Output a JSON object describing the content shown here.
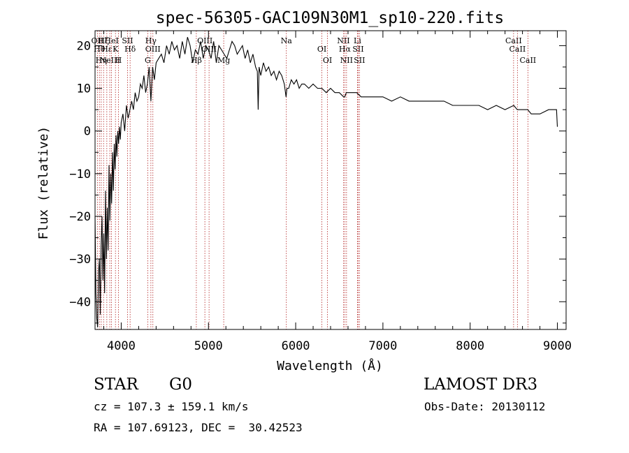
{
  "chart_data": {
    "type": "line",
    "title": "spec-56305-GAC109N30M1_sp10-220.fits",
    "xlabel": "Wavelength (Å)",
    "ylabel": "Flux (relative)",
    "xlim": [
      3700,
      9100
    ],
    "ylim": [
      -46.5,
      23.5
    ],
    "xticks": [
      4000,
      5000,
      6000,
      7000,
      8000,
      9000
    ],
    "yticks": [
      -40,
      -30,
      -20,
      -10,
      0,
      10,
      20
    ],
    "series": [
      {
        "name": "flux",
        "x": [
          3700,
          3710,
          3720,
          3730,
          3740,
          3750,
          3760,
          3770,
          3780,
          3790,
          3800,
          3810,
          3820,
          3830,
          3840,
          3850,
          3860,
          3870,
          3880,
          3890,
          3900,
          3910,
          3920,
          3930,
          3940,
          3950,
          3960,
          3970,
          3980,
          3990,
          4000,
          4020,
          4040,
          4060,
          4080,
          4100,
          4120,
          4140,
          4160,
          4180,
          4200,
          4220,
          4240,
          4260,
          4280,
          4300,
          4320,
          4340,
          4360,
          4380,
          4400,
          4430,
          4460,
          4490,
          4520,
          4550,
          4580,
          4610,
          4640,
          4670,
          4700,
          4730,
          4760,
          4790,
          4820,
          4850,
          4880,
          4910,
          4940,
          4970,
          5000,
          5030,
          5060,
          5090,
          5120,
          5150,
          5180,
          5210,
          5240,
          5270,
          5300,
          5330,
          5360,
          5390,
          5420,
          5450,
          5480,
          5510,
          5540,
          5560,
          5570,
          5580,
          5600,
          5630,
          5660,
          5690,
          5720,
          5750,
          5780,
          5810,
          5840,
          5870,
          5890,
          5900,
          5920,
          5950,
          5980,
          6010,
          6040,
          6070,
          6100,
          6150,
          6200,
          6250,
          6300,
          6350,
          6400,
          6450,
          6500,
          6550,
          6563,
          6580,
          6600,
          6650,
          6700,
          6750,
          6800,
          6900,
          7000,
          7100,
          7200,
          7300,
          7400,
          7500,
          7600,
          7700,
          7800,
          7900,
          8000,
          8100,
          8200,
          8300,
          8400,
          8500,
          8540,
          8600,
          8660,
          8700,
          8800,
          8900,
          8960,
          8990,
          9000
        ],
        "y": [
          -20,
          -38,
          -44,
          -46,
          -33,
          -30,
          -43,
          -27,
          -20,
          -35,
          -24,
          -38,
          -14,
          -30,
          -18,
          -28,
          -8,
          -21,
          -10,
          -17,
          -5,
          -14,
          -3,
          -9,
          -1,
          -6,
          0,
          -3,
          1,
          -2,
          2,
          4,
          0,
          6,
          3,
          5,
          7,
          5,
          9,
          7,
          8,
          11,
          10,
          13,
          9,
          11,
          15,
          7,
          15,
          12,
          16,
          17,
          18,
          16,
          20,
          18,
          21,
          19,
          20,
          17,
          21,
          18,
          22,
          20,
          16,
          19,
          18,
          21,
          17,
          20,
          19,
          17,
          21,
          16,
          20,
          19,
          18,
          17,
          19,
          21,
          20,
          18,
          19,
          20,
          17,
          19,
          16,
          18,
          15,
          14,
          5,
          15,
          13,
          16,
          14,
          15,
          13,
          14,
          12,
          14,
          13,
          11,
          8,
          10,
          10,
          12,
          11,
          12,
          10,
          11,
          11,
          10,
          11,
          10,
          10,
          9,
          10,
          9,
          9,
          8,
          8,
          9,
          9,
          9,
          9,
          8,
          8,
          8,
          8,
          7,
          8,
          7,
          7,
          7,
          7,
          7,
          6,
          6,
          6,
          6,
          5,
          6,
          5,
          6,
          5,
          5,
          5,
          4,
          4,
          5,
          5,
          5,
          1
        ]
      }
    ],
    "line_markers": [
      {
        "x": 3727,
        "label": "OII"
      },
      {
        "x": 3750,
        "label": "Hθ"
      },
      {
        "x": 3771,
        "label": "Hη"
      },
      {
        "x": 3798,
        "label": "Hζ"
      },
      {
        "x": 3835,
        "label": "Hε"
      },
      {
        "x": 3869,
        "label": "NeIII"
      },
      {
        "x": 3889,
        "label": "HeI"
      },
      {
        "x": 3934,
        "label": "K"
      },
      {
        "x": 3968,
        "label": "H"
      },
      {
        "x": 4072,
        "label": "SII"
      },
      {
        "x": 4102,
        "label": "Hδ"
      },
      {
        "x": 4304,
        "label": "G"
      },
      {
        "x": 4340,
        "label": "Hγ"
      },
      {
        "x": 4363,
        "label": "OIII"
      },
      {
        "x": 4861,
        "label": "Hβ"
      },
      {
        "x": 4959,
        "label": "OIII"
      },
      {
        "x": 5007,
        "label": "OIII"
      },
      {
        "x": 5175,
        "label": "Mg"
      },
      {
        "x": 5893,
        "label": "Na"
      },
      {
        "x": 6300,
        "label": "OI"
      },
      {
        "x": 6364,
        "label": "OI"
      },
      {
        "x": 6548,
        "label": "NII"
      },
      {
        "x": 6563,
        "label": "Hα"
      },
      {
        "x": 6583,
        "label": "NII"
      },
      {
        "x": 6708,
        "label": "Li"
      },
      {
        "x": 6716,
        "label": "SII"
      },
      {
        "x": 6731,
        "label": "SII"
      },
      {
        "x": 8498,
        "label": "CaII"
      },
      {
        "x": 8542,
        "label": "CaII"
      },
      {
        "x": 8662,
        "label": "CaII"
      }
    ]
  },
  "info": {
    "object_class": "STAR",
    "subclass": "G0",
    "survey": "LAMOST DR3",
    "cz": "cz = 107.3 ± 159.1 km/s",
    "obs_date": "Obs-Date: 20130112",
    "coords": "RA = 107.69123, DEC =  30.42523"
  }
}
